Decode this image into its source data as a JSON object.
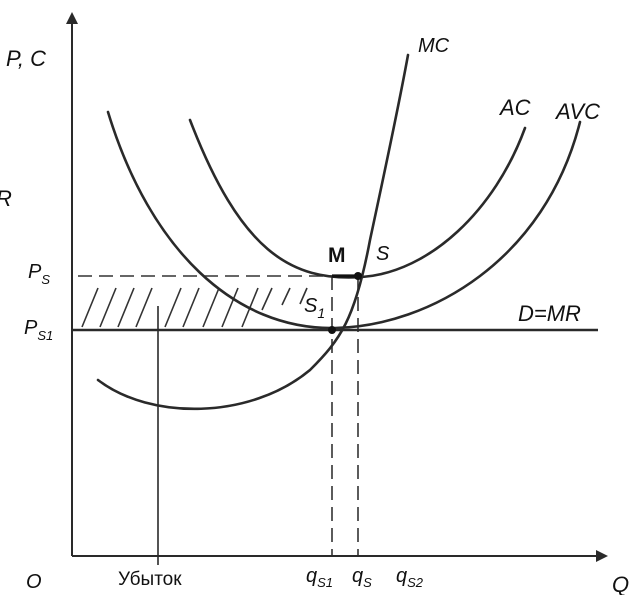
{
  "axes": {
    "y_label": "P, C",
    "x_label": "Q",
    "origin": "O"
  },
  "curves": {
    "mc": "MC",
    "ac": "AC",
    "avc": "AVC",
    "demand": "D=MR"
  },
  "points": {
    "m": "M",
    "s": "S",
    "s1_base": "S",
    "s1_sub": "1"
  },
  "price_labels": {
    "ps_base": "P",
    "ps_sub": "S",
    "ps1_base": "P",
    "ps1_sub": "S1"
  },
  "quantity_labels": {
    "qs1_base": "q",
    "qs1_sub": "S1",
    "qs_base": "q",
    "qs_sub": "S",
    "qs2_base": "q",
    "qs2_sub": "S2"
  },
  "loss_label": "Убыток",
  "edge_fragment": "R"
}
